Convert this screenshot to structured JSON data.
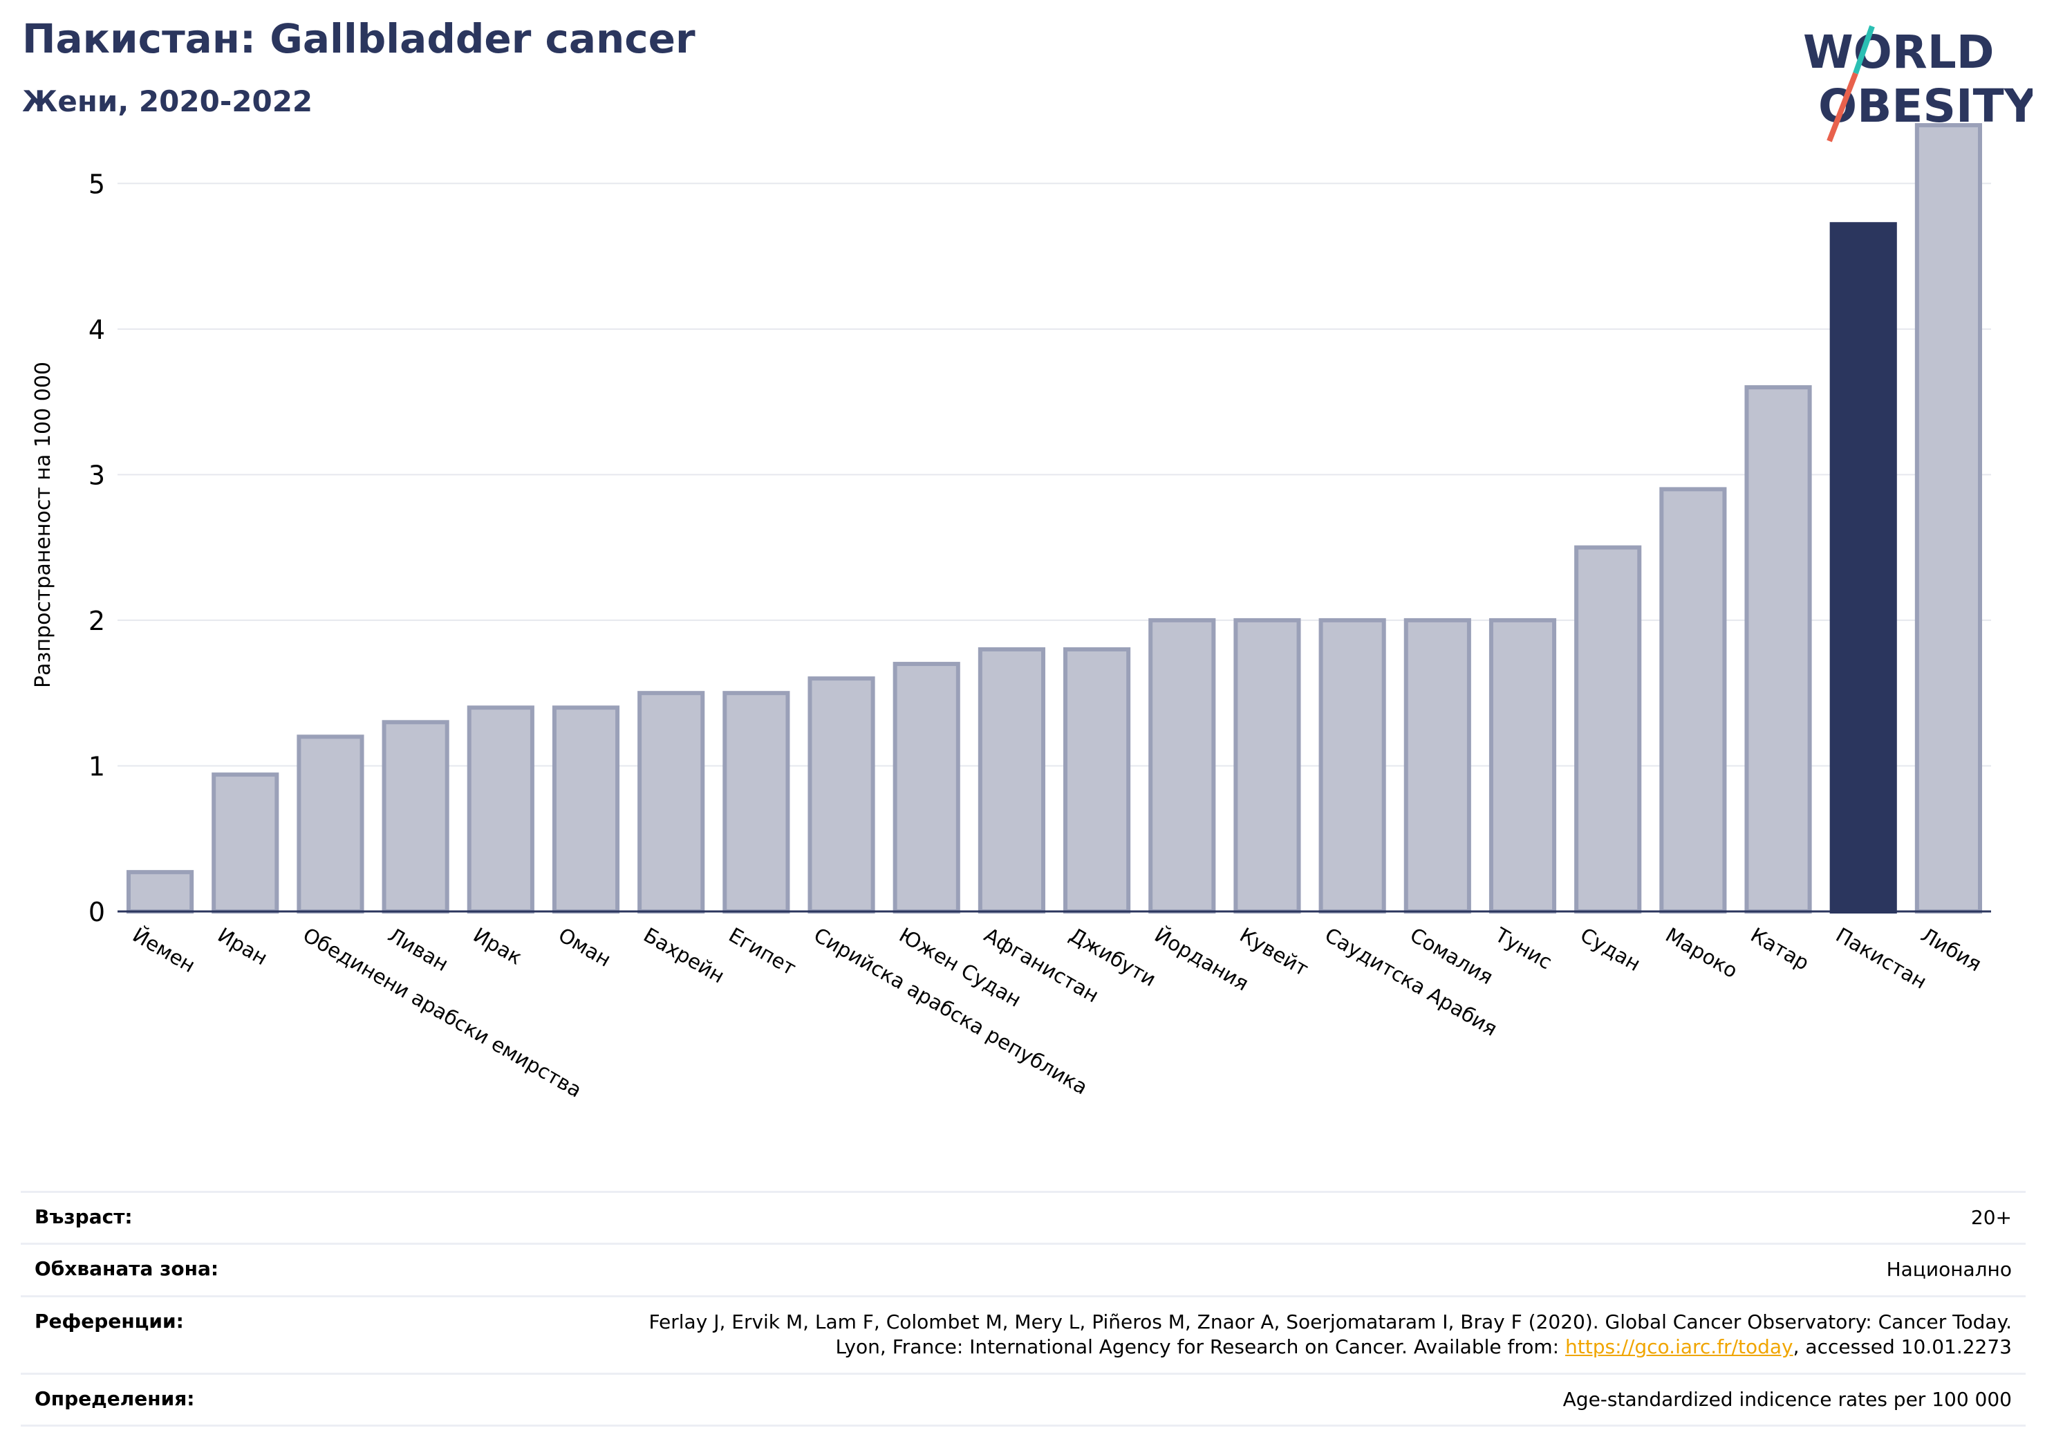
{
  "header": {
    "title": "Пакистан: Gallbladder cancer",
    "subtitle": "Жени, 2020-2022"
  },
  "logo": {
    "line1": "WORLD",
    "line2": "OBESITY",
    "colors": {
      "text": "#2b365e",
      "slash_top": "#2bbfb3",
      "slash_bottom": "#e8614c"
    }
  },
  "chart_data": {
    "type": "bar",
    "ylabel": "Разпространеност  на 100 000",
    "ylim": [
      0,
      5.5
    ],
    "yticks": [
      0,
      1,
      2,
      3,
      4,
      5
    ],
    "grid": true,
    "highlight": "Пакистан",
    "colors": {
      "bar": "#bfc2d0",
      "bar_edge": "#9aa0b8",
      "highlight": "#2b365e",
      "grid": "#e6e8ee",
      "axis": "#2b365e"
    },
    "categories": [
      "Йемен",
      "Иран",
      "Обединени арабски емирства",
      "Ливан",
      "Ирак",
      "Оман",
      "Бахрейн",
      "Египет",
      "Сирийска арабска република",
      "Южен Судан",
      "Афганистан",
      "Джибути",
      "Йордания",
      "Кувейт",
      "Саудитска Арабия",
      "Сомалия",
      "Тунис",
      "Судан",
      "Мароко",
      "Катар",
      "Пакистан",
      "Либия"
    ],
    "values": [
      0.27,
      0.94,
      1.2,
      1.3,
      1.4,
      1.4,
      1.5,
      1.5,
      1.6,
      1.7,
      1.8,
      1.8,
      2.0,
      2.0,
      2.0,
      2.0,
      2.0,
      2.5,
      2.9,
      3.6,
      4.72,
      5.4
    ]
  },
  "info": {
    "age_label": "Възраст:",
    "age_value": "20+",
    "area_label": "Обхваната зона:",
    "area_value": "Национално",
    "refs_label": "Референции:",
    "refs_line1": "Ferlay J, Ervik M, Lam F, Colombet M, Mery L, Piñeros M, Znaor A, Soerjomataram I, Bray F (2020). Global Cancer Observatory: Cancer Today.",
    "refs_line2_pre": "Lyon, France: International Agency for Research on Cancer. Available from: ",
    "refs_link": "https://gco.iarc.fr/today",
    "refs_line2_post": ", accessed 10.01.2273",
    "defs_label": "Определения:",
    "defs_value": "Age-standardized indicence rates per 100 000"
  }
}
